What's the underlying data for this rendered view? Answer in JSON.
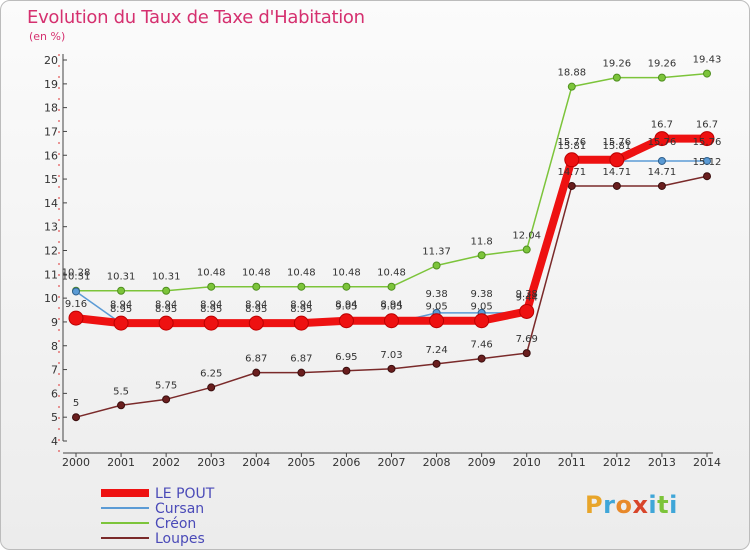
{
  "header": {
    "title": "Evolution du Taux de Taxe d'Habitation",
    "subtitle": "(en %)"
  },
  "logo": {
    "letters": [
      "P",
      "r",
      "o",
      "x",
      "i",
      "t",
      "i"
    ],
    "colors": [
      "#e8a52a",
      "#3fa6d8",
      "#e8892a",
      "#d8452a",
      "#3fa6d8",
      "#7cc43a",
      "#3fa6d8"
    ]
  },
  "chart_data": {
    "type": "line",
    "x": [
      "2000",
      "2001",
      "2002",
      "2003",
      "2004",
      "2005",
      "2006",
      "2007",
      "2008",
      "2009",
      "2010",
      "2011",
      "2012",
      "2013",
      "2014"
    ],
    "ylim": [
      4,
      20
    ],
    "yticks": [
      4,
      5,
      6,
      7,
      8,
      9,
      10,
      11,
      12,
      13,
      14,
      15,
      16,
      17,
      18,
      19,
      20
    ],
    "grid": false,
    "legend_position": "bottom-left",
    "series": [
      {
        "name": "LE POUT",
        "color": "#ee1111",
        "values": [
          9.16,
          8.95,
          8.95,
          8.95,
          8.95,
          8.95,
          9.05,
          9.05,
          9.05,
          9.05,
          9.44,
          15.81,
          15.81,
          16.7,
          16.7
        ],
        "labels": [
          "9.16",
          "8.95",
          "8.95",
          "8.95",
          "8.95",
          "8.95",
          "9.05",
          "9.05",
          "9.05",
          "9.05",
          "9.44",
          "15.81",
          "15.81",
          "16.7",
          "16.7"
        ]
      },
      {
        "name": "Cursan",
        "color": "#5b9bd5",
        "values": [
          10.28,
          8.94,
          8.94,
          8.94,
          8.94,
          8.94,
          8.94,
          8.94,
          9.38,
          9.38,
          9.38,
          15.76,
          15.76,
          15.76,
          15.76
        ],
        "labels": [
          "10.28",
          "8.94",
          "8.94",
          "8.94",
          "8.94",
          "8.94",
          "8.94",
          "8.94",
          "9.38",
          "9.38",
          "9.38",
          "15.76",
          "15.76",
          "15.76",
          "15.76"
        ]
      },
      {
        "name": "Créon",
        "color": "#7cc43a",
        "values": [
          10.31,
          10.31,
          10.31,
          10.48,
          10.48,
          10.48,
          10.48,
          10.48,
          11.37,
          11.8,
          12.04,
          18.88,
          19.26,
          19.26,
          19.43
        ],
        "labels": [
          "10.31",
          "10.31",
          "10.31",
          "10.48",
          "10.48",
          "10.48",
          "10.48",
          "10.48",
          "11.37",
          "11.8",
          "12.04",
          "18.88",
          "19.26",
          "19.26",
          "19.43"
        ]
      },
      {
        "name": "Loupes",
        "color": "#7a2a2a",
        "values": [
          5,
          5.5,
          5.75,
          6.25,
          6.87,
          6.87,
          6.95,
          7.03,
          7.24,
          7.46,
          7.69,
          14.71,
          14.71,
          14.71,
          15.12
        ],
        "labels": [
          "5",
          "5.5",
          "5.75",
          "6.25",
          "6.87",
          "6.87",
          "6.95",
          "7.03",
          "7.24",
          "7.46",
          "7.69",
          "14.71",
          "14.71",
          "14.71",
          "15.12"
        ]
      }
    ]
  }
}
